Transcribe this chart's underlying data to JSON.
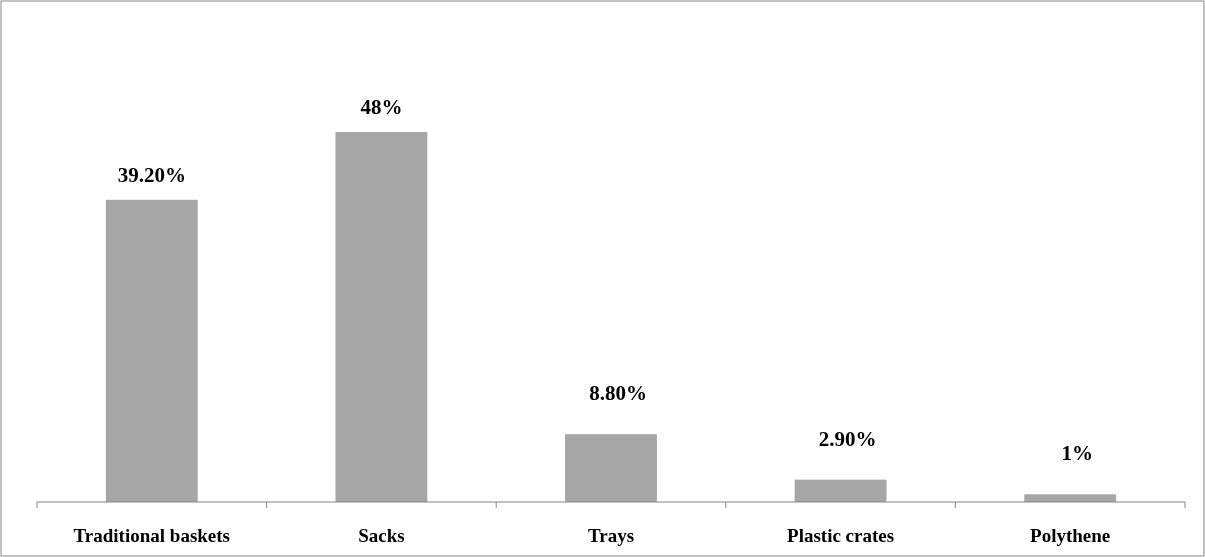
{
  "chart_data": {
    "type": "bar",
    "categories": [
      "Traditional baskets",
      "Sacks",
      "Trays",
      "Plastic crates",
      "Polythene"
    ],
    "values": [
      39.2,
      48,
      8.8,
      2.9,
      1
    ],
    "value_labels": [
      "39.20%",
      "48%",
      "8.80%",
      "2.90%",
      "1%"
    ],
    "color": "#a6a6a6",
    "tick_labels": "x"
  }
}
